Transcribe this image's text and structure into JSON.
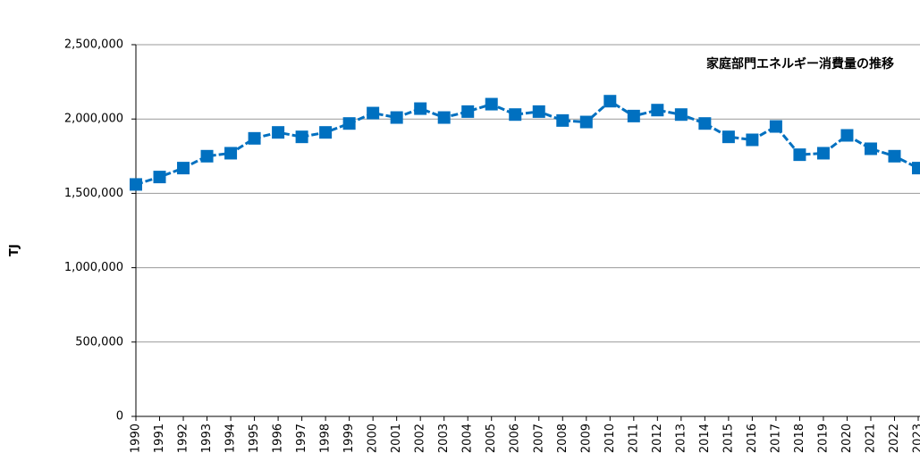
{
  "chart_data": {
    "type": "line",
    "title": "家庭部門エネルギー消費量の推移",
    "y_label": "TJ",
    "categories": [
      "1990",
      "1991",
      "1992",
      "1993",
      "1994",
      "1995",
      "1996",
      "1997",
      "1998",
      "1999",
      "2000",
      "2001",
      "2002",
      "2003",
      "2004",
      "2005",
      "2006",
      "2007",
      "2008",
      "2009",
      "2010",
      "2011",
      "2012",
      "2013",
      "2014",
      "2015",
      "2016",
      "2017",
      "2018",
      "2019",
      "2020",
      "2021",
      "2022",
      "2023"
    ],
    "series": [
      {
        "name": "家庭部門",
        "color": "#0070c0",
        "values": [
          1560000,
          1610000,
          1670000,
          1750000,
          1770000,
          1870000,
          1910000,
          1880000,
          1910000,
          1970000,
          2040000,
          2010000,
          2070000,
          2010000,
          2050000,
          2100000,
          2030000,
          2050000,
          1990000,
          1980000,
          2120000,
          2020000,
          2060000,
          2030000,
          1970000,
          1880000,
          1860000,
          1950000,
          1760000,
          1770000,
          1890000,
          1800000,
          1750000,
          1670000
        ]
      }
    ],
    "ylim": [
      0,
      2500000
    ],
    "yticks": [
      0,
      {
        "value": 500000,
        "label": "500,000"
      },
      {
        "value": 1000000,
        "label": "1,000,000"
      },
      {
        "value": 1500000,
        "label": "1,500,000"
      },
      {
        "value": 2000000,
        "label": "2,000,000"
      },
      {
        "value": 2500000,
        "label": "2,500,000"
      }
    ],
    "grid": true
  }
}
